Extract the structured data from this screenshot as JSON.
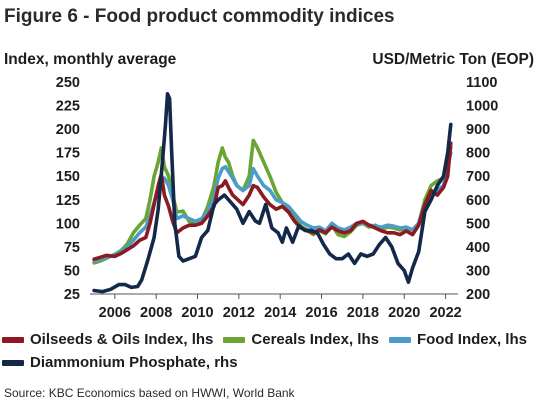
{
  "header": {
    "title": "Figure 6 - Food product commodity indices",
    "left_axis_title": "Index, monthly average",
    "right_axis_title": "USD/Metric Ton (EOP)"
  },
  "footer": {
    "source": "Source: KBC Economics based on HWWI, World Bank"
  },
  "colors": {
    "oilseeds": "#8b1a22",
    "cereals": "#6aa534",
    "food": "#4a9cc9",
    "dap": "#14284a"
  },
  "chart_data": {
    "type": "line",
    "title": "Figure 6 - Food product commodity indices",
    "ylabel_left": "Index, monthly average",
    "ylabel_right": "USD/Metric Ton (EOP)",
    "xlim": [
      2004.8,
      2022.6
    ],
    "ylim_left": [
      25,
      250
    ],
    "ylim_right": [
      200,
      1100
    ],
    "x_ticks": [
      2006,
      2008,
      2010,
      2012,
      2014,
      2016,
      2018,
      2020,
      2022
    ],
    "y_left_ticks": [
      25,
      50,
      75,
      100,
      125,
      150,
      175,
      200,
      225,
      250
    ],
    "y_right_ticks": [
      200,
      300,
      400,
      500,
      600,
      700,
      800,
      900,
      1000,
      1100
    ],
    "grid": false,
    "legend_position": "bottom",
    "series": [
      {
        "name": "Cereals Index, lhs",
        "axis": "left",
        "color": "#6aa534",
        "x": [
          2005.0,
          2005.3,
          2005.6,
          2006.0,
          2006.3,
          2006.6,
          2006.9,
          2007.2,
          2007.5,
          2007.7,
          2007.9,
          2008.1,
          2008.25,
          2008.4,
          2008.6,
          2008.8,
          2009.0,
          2009.3,
          2009.6,
          2009.9,
          2010.2,
          2010.5,
          2010.8,
          2011.0,
          2011.2,
          2011.35,
          2011.5,
          2011.7,
          2011.9,
          2012.2,
          2012.5,
          2012.7,
          2012.9,
          2013.2,
          2013.5,
          2013.8,
          2014.1,
          2014.4,
          2014.7,
          2015.0,
          2015.3,
          2015.6,
          2015.9,
          2016.2,
          2016.5,
          2016.8,
          2017.1,
          2017.4,
          2017.7,
          2018.0,
          2018.3,
          2018.6,
          2018.9,
          2019.2,
          2019.5,
          2019.8,
          2020.1,
          2020.4,
          2020.7,
          2021.0,
          2021.3,
          2021.6,
          2021.9,
          2022.1,
          2022.25
        ],
        "values": [
          58,
          60,
          63,
          67,
          71,
          78,
          90,
          98,
          105,
          125,
          150,
          165,
          180,
          160,
          150,
          130,
          112,
          113,
          102,
          100,
          103,
          118,
          140,
          165,
          180,
          170,
          165,
          150,
          140,
          135,
          150,
          188,
          180,
          165,
          150,
          133,
          122,
          115,
          108,
          97,
          93,
          88,
          92,
          89,
          98,
          88,
          86,
          91,
          98,
          100,
          96,
          98,
          94,
          96,
          95,
          93,
          95,
          93,
          100,
          125,
          140,
          145,
          148,
          170,
          180
        ]
      },
      {
        "name": "Food Index, lhs",
        "axis": "left",
        "color": "#4a9cc9",
        "x": [
          2005.0,
          2005.3,
          2005.6,
          2006.0,
          2006.3,
          2006.6,
          2006.9,
          2007.2,
          2007.5,
          2007.7,
          2007.9,
          2008.1,
          2008.25,
          2008.4,
          2008.6,
          2008.8,
          2009.0,
          2009.3,
          2009.6,
          2009.9,
          2010.2,
          2010.5,
          2010.8,
          2011.0,
          2011.2,
          2011.35,
          2011.5,
          2011.7,
          2011.9,
          2012.2,
          2012.5,
          2012.7,
          2012.9,
          2013.2,
          2013.5,
          2013.8,
          2014.1,
          2014.4,
          2014.7,
          2015.0,
          2015.3,
          2015.6,
          2015.9,
          2016.2,
          2016.5,
          2016.8,
          2017.1,
          2017.4,
          2017.7,
          2018.0,
          2018.3,
          2018.6,
          2018.9,
          2019.2,
          2019.5,
          2019.8,
          2020.1,
          2020.4,
          2020.7,
          2021.0,
          2021.3,
          2021.6,
          2021.9,
          2022.1,
          2022.25
        ],
        "values": [
          60,
          62,
          64,
          66,
          70,
          75,
          82,
          90,
          96,
          108,
          122,
          138,
          145,
          148,
          140,
          125,
          105,
          108,
          105,
          102,
          105,
          112,
          128,
          148,
          158,
          160,
          155,
          148,
          140,
          135,
          140,
          158,
          150,
          140,
          135,
          125,
          122,
          118,
          110,
          102,
          98,
          95,
          96,
          92,
          100,
          95,
          93,
          96,
          100,
          100,
          98,
          97,
          96,
          98,
          97,
          95,
          96,
          93,
          100,
          120,
          132,
          135,
          140,
          160,
          175
        ]
      },
      {
        "name": "Oilseeds & Oils Index, lhs",
        "axis": "left",
        "color": "#8b1a22",
        "x": [
          2005.0,
          2005.3,
          2005.6,
          2006.0,
          2006.3,
          2006.6,
          2006.9,
          2007.2,
          2007.5,
          2007.7,
          2007.9,
          2008.1,
          2008.25,
          2008.4,
          2008.6,
          2008.8,
          2009.0,
          2009.3,
          2009.6,
          2009.9,
          2010.2,
          2010.5,
          2010.8,
          2011.0,
          2011.2,
          2011.35,
          2011.5,
          2011.7,
          2011.9,
          2012.2,
          2012.5,
          2012.7,
          2012.9,
          2013.2,
          2013.5,
          2013.8,
          2014.1,
          2014.4,
          2014.7,
          2015.0,
          2015.3,
          2015.6,
          2015.9,
          2016.2,
          2016.5,
          2016.8,
          2017.1,
          2017.4,
          2017.7,
          2018.0,
          2018.3,
          2018.6,
          2018.9,
          2019.2,
          2019.5,
          2019.8,
          2020.1,
          2020.4,
          2020.7,
          2021.0,
          2021.3,
          2021.6,
          2021.9,
          2022.1,
          2022.25
        ],
        "values": [
          62,
          64,
          66,
          65,
          68,
          72,
          76,
          82,
          85,
          100,
          120,
          140,
          152,
          130,
          118,
          102,
          90,
          95,
          98,
          98,
          100,
          108,
          118,
          138,
          140,
          145,
          138,
          130,
          126,
          120,
          130,
          140,
          138,
          128,
          120,
          115,
          118,
          112,
          102,
          95,
          92,
          90,
          93,
          90,
          96,
          92,
          90,
          92,
          100,
          102,
          98,
          95,
          92,
          90,
          90,
          88,
          92,
          88,
          98,
          120,
          135,
          130,
          138,
          150,
          185
        ]
      },
      {
        "name": "Diammonium Phosphate, rhs",
        "axis": "right",
        "color": "#14284a",
        "x": [
          2005.0,
          2005.4,
          2005.8,
          2006.2,
          2006.5,
          2006.8,
          2007.1,
          2007.3,
          2007.6,
          2007.9,
          2008.1,
          2008.3,
          2008.45,
          2008.55,
          2008.65,
          2008.75,
          2008.9,
          2009.1,
          2009.3,
          2009.6,
          2009.9,
          2010.2,
          2010.5,
          2010.8,
          2011.0,
          2011.3,
          2011.6,
          2011.9,
          2012.2,
          2012.5,
          2012.8,
          2013.0,
          2013.3,
          2013.6,
          2013.9,
          2014.1,
          2014.3,
          2014.6,
          2014.9,
          2015.2,
          2015.5,
          2015.8,
          2016.1,
          2016.4,
          2016.7,
          2017.0,
          2017.3,
          2017.6,
          2017.9,
          2018.2,
          2018.5,
          2018.8,
          2019.1,
          2019.4,
          2019.7,
          2020.0,
          2020.2,
          2020.4,
          2020.7,
          2021.0,
          2021.3,
          2021.6,
          2021.9,
          2022.1,
          2022.25
        ],
        "values": [
          215,
          210,
          220,
          240,
          240,
          228,
          232,
          260,
          345,
          440,
          560,
          760,
          920,
          1050,
          1030,
          800,
          500,
          360,
          340,
          350,
          360,
          440,
          470,
          580,
          600,
          620,
          590,
          560,
          500,
          550,
          510,
          500,
          580,
          480,
          460,
          420,
          480,
          420,
          490,
          470,
          470,
          460,
          410,
          370,
          350,
          350,
          370,
          330,
          370,
          360,
          370,
          410,
          440,
          400,
          330,
          300,
          250,
          310,
          380,
          550,
          600,
          660,
          700,
          800,
          920
        ]
      }
    ]
  },
  "legend": [
    {
      "label": "Oilseeds & Oils Index, lhs",
      "color": "#8b1a22"
    },
    {
      "label": "Cereals Index, lhs",
      "color": "#6aa534"
    },
    {
      "label": "Food Index, lhs",
      "color": "#4a9cc9"
    },
    {
      "label": "Diammonium Phosphate, rhs",
      "color": "#14284a"
    }
  ]
}
